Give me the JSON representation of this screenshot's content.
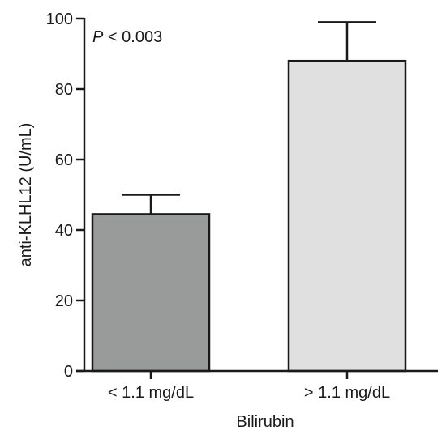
{
  "chart_data": {
    "type": "bar",
    "categories": [
      "< 1.1 mg/dL",
      "> 1.1 mg/dL"
    ],
    "values": [
      44.5,
      88
    ],
    "error_upper": [
      50,
      99
    ],
    "bar_colors": [
      "#999b9b",
      "#e0e0e0"
    ],
    "xlabel": "Bilirubin",
    "ylabel": "anti-KLHL12 (U/mL)",
    "ylim": [
      0,
      100
    ],
    "yticks": [
      0,
      20,
      40,
      60,
      80,
      100
    ],
    "annotation": {
      "italic_part": "P",
      "rest": " < 0.003"
    }
  }
}
